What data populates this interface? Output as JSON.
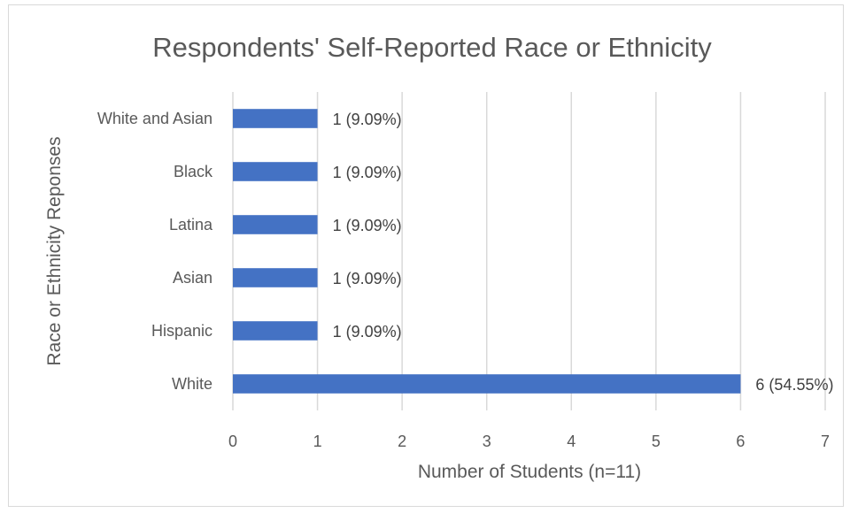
{
  "chart_data": {
    "type": "bar",
    "orientation": "horizontal",
    "title": "Respondents' Self-Reported Race or Ethnicity",
    "xlabel": "Number of Students (n=11)",
    "ylabel": "Race or Ethnicity Reponses",
    "categories": [
      "White and Asian",
      "Black",
      "Latina",
      "Asian",
      "Hispanic",
      "White"
    ],
    "values": [
      1,
      1,
      1,
      1,
      1,
      6
    ],
    "data_labels": [
      "1 (9.09%)",
      "1 (9.09%)",
      "1 (9.09%)",
      "1 (9.09%)",
      "1 (9.09%)",
      "6 (54.55%)"
    ],
    "xlim": [
      0,
      7
    ],
    "x_ticks": [
      0,
      1,
      2,
      3,
      4,
      5,
      6,
      7
    ],
    "grid": "vertical",
    "legend": "none",
    "bar_color": "#4472c4"
  }
}
